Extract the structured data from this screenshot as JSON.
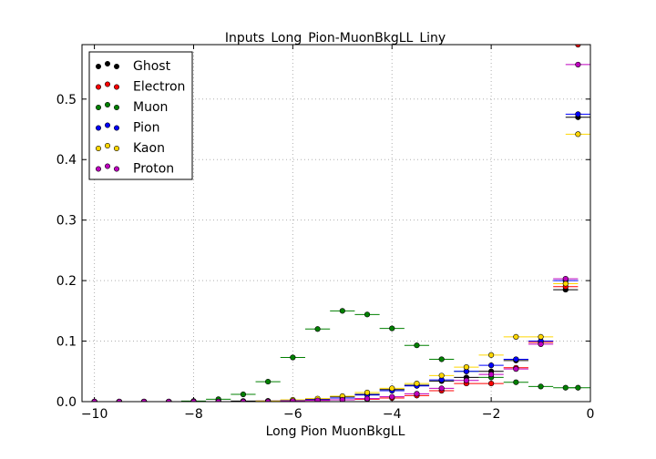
{
  "chart_data": {
    "type": "scatter",
    "title": "Inputs_Long_Pion-MuonBkgLL_Liny",
    "xlabel": "Long Pion MuonBkgLL",
    "ylabel": "",
    "xlim": [
      -10.25,
      0
    ],
    "ylim": [
      0,
      0.59
    ],
    "xticks": [
      -10,
      -8,
      -6,
      -4,
      -2,
      0
    ],
    "xtick_labels": [
      "−10",
      "−8",
      "−6",
      "−4",
      "−2",
      "0"
    ],
    "yticks": [
      0.0,
      0.1,
      0.2,
      0.3,
      0.4,
      0.5
    ],
    "ytick_labels": [
      "0.0",
      "0.1",
      "0.2",
      "0.3",
      "0.4",
      "0.5"
    ],
    "grid": true,
    "legend_position": "top-left",
    "bin_halfwidth": 0.25,
    "x": [
      -10.0,
      -9.5,
      -9.0,
      -8.5,
      -8.0,
      -7.5,
      -7.0,
      -6.5,
      -6.0,
      -5.5,
      -5.0,
      -4.5,
      -4.0,
      -3.5,
      -3.0,
      -2.5,
      -2.0,
      -1.5,
      -1.0,
      -0.5,
      -0.25
    ],
    "series": [
      {
        "name": "Ghost",
        "color": "#000000",
        "values": [
          0,
          0,
          0,
          0,
          0,
          0,
          0.001,
          0.001,
          0.002,
          0.004,
          0.008,
          0.012,
          0.02,
          0.027,
          0.034,
          0.04,
          0.05,
          0.068,
          0.1,
          0.185,
          0.47
        ]
      },
      {
        "name": "Electron",
        "color": "#ff0000",
        "values": [
          0,
          0,
          0,
          0,
          0,
          0,
          0,
          0.001,
          0.001,
          0.002,
          0.003,
          0.004,
          0.006,
          0.01,
          0.018,
          0.03,
          0.03,
          0.056,
          0.098,
          0.19,
          0.59
        ]
      },
      {
        "name": "Muon",
        "color": "#008000",
        "values": [
          0,
          0,
          0,
          0,
          0.001,
          0.004,
          0.012,
          0.033,
          0.073,
          0.12,
          0.15,
          0.144,
          0.121,
          0.093,
          0.07,
          0.05,
          0.04,
          0.032,
          0.025,
          0.023,
          0.023
        ]
      },
      {
        "name": "Pion",
        "color": "#0000ff",
        "values": [
          0,
          0,
          0,
          0,
          0,
          0,
          0,
          0.001,
          0.002,
          0.003,
          0.006,
          0.011,
          0.018,
          0.026,
          0.036,
          0.05,
          0.06,
          0.07,
          0.1,
          0.2,
          0.475
        ]
      },
      {
        "name": "Kaon",
        "color": "#ffd700",
        "values": [
          0,
          0,
          0,
          0,
          0,
          0,
          0,
          0.001,
          0.003,
          0.005,
          0.009,
          0.015,
          0.022,
          0.03,
          0.043,
          0.057,
          0.077,
          0.107,
          0.107,
          0.195,
          0.442
        ]
      },
      {
        "name": "Proton",
        "color": "#bf00bf",
        "values": [
          0,
          0,
          0,
          0,
          0,
          0,
          0,
          0,
          0.001,
          0.002,
          0.003,
          0.005,
          0.008,
          0.013,
          0.022,
          0.035,
          0.045,
          0.054,
          0.095,
          0.203,
          0.557
        ]
      }
    ]
  }
}
